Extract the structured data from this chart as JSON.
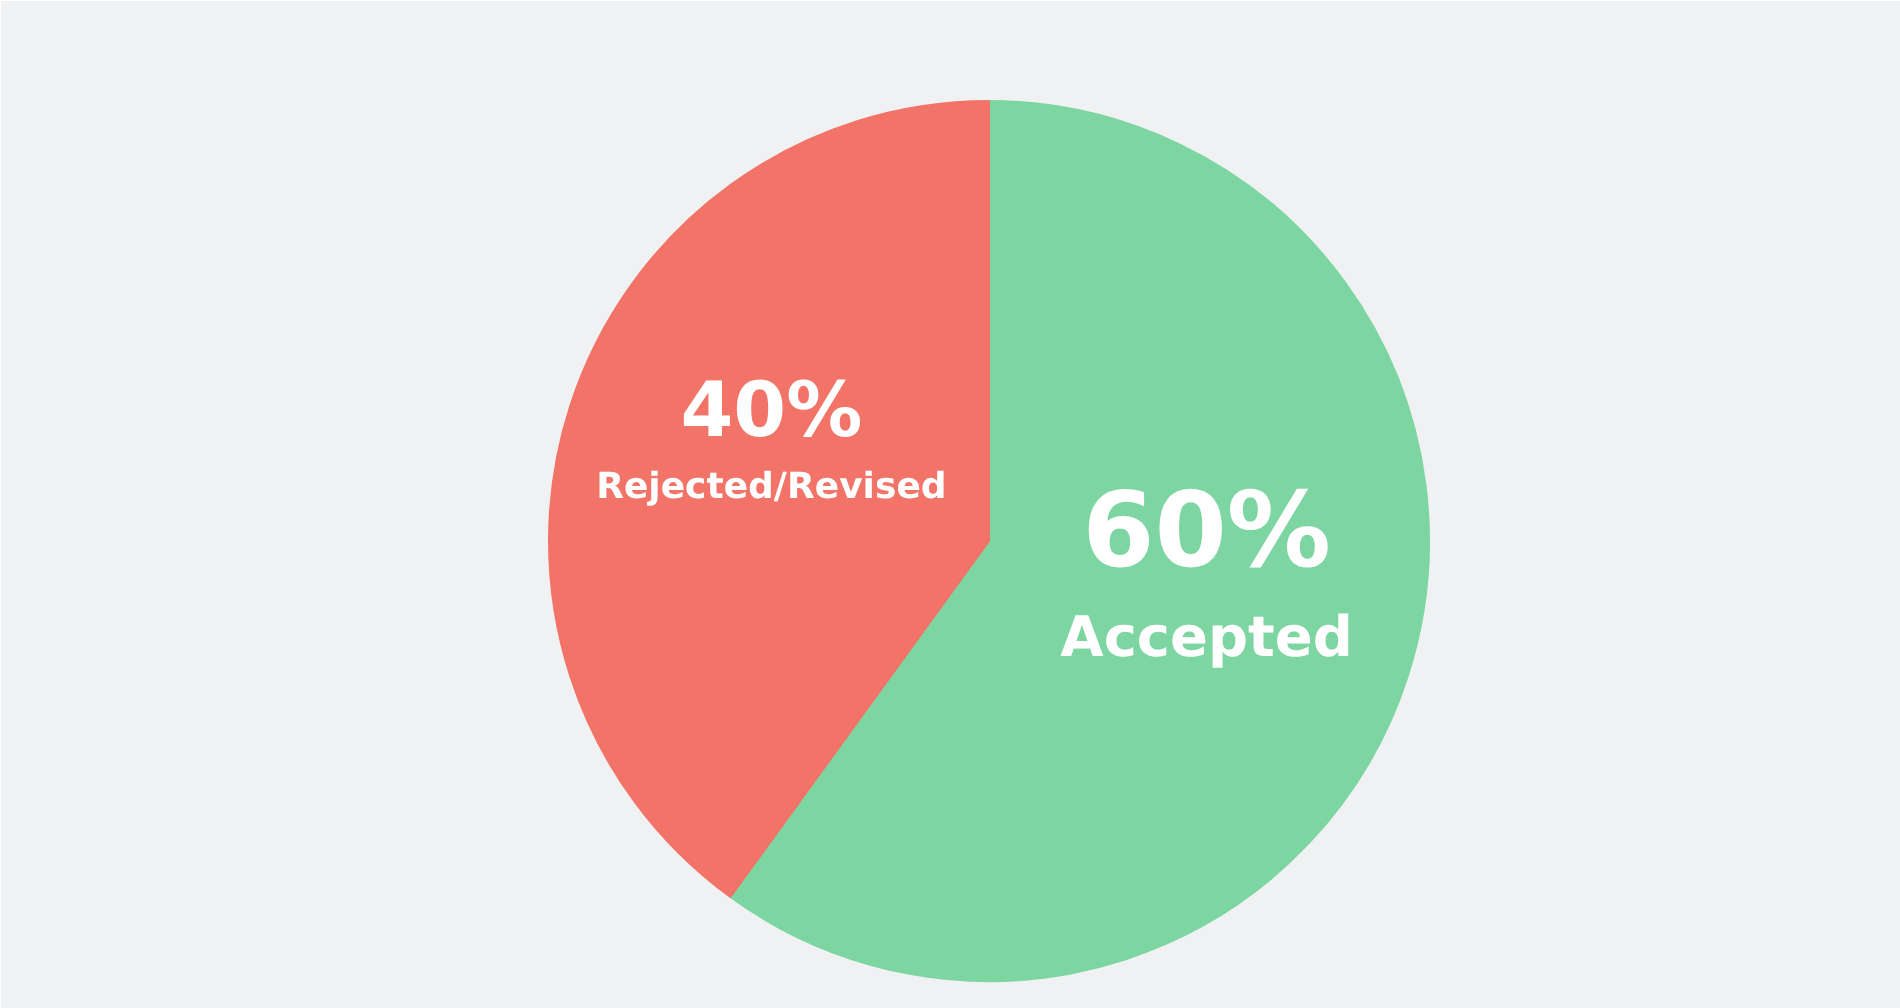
{
  "chart_data": {
    "type": "pie",
    "categories": [
      "Accepted",
      "Rejected/Revised"
    ],
    "values": [
      60,
      40
    ],
    "colors": [
      "#7dd6a2",
      "#f27367"
    ],
    "value_labels": [
      "60%",
      "40%"
    ]
  }
}
